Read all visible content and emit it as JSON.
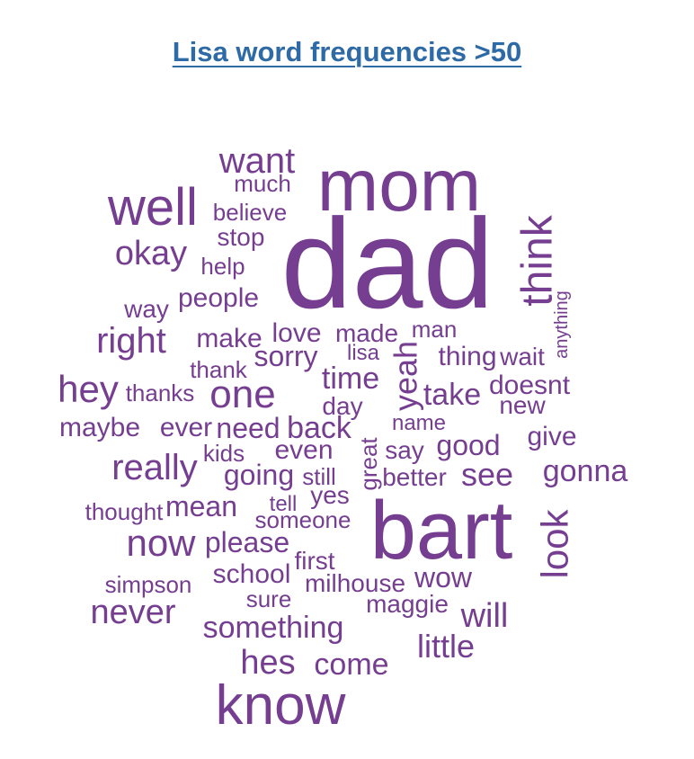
{
  "title": "Lisa word frequencies >50",
  "colors": {
    "title": "#2d6aa6",
    "words": "#753e91"
  },
  "chart_data": {
    "type": "wordcloud",
    "title": "Lisa word frequencies >50",
    "words": [
      "dad",
      "mom",
      "bart",
      "know",
      "well",
      "think",
      "want",
      "much",
      "believe",
      "stop",
      "okay",
      "help",
      "way",
      "people",
      "right",
      "make",
      "love",
      "made",
      "man",
      "anything",
      "lisa",
      "sorry",
      "thing",
      "wait",
      "thank",
      "time",
      "yeah",
      "hey",
      "thanks",
      "one",
      "take",
      "doesnt",
      "day",
      "new",
      "name",
      "maybe",
      "ever",
      "need",
      "back",
      "give",
      "kids",
      "even",
      "great",
      "say",
      "good",
      "really",
      "going",
      "still",
      "better",
      "see",
      "gonna",
      "yes",
      "thought",
      "mean",
      "tell",
      "someone",
      "now",
      "please",
      "look",
      "first",
      "simpson",
      "school",
      "milhouse",
      "wow",
      "sure",
      "never",
      "maggie",
      "will",
      "something",
      "little",
      "hes",
      "come"
    ]
  }
}
